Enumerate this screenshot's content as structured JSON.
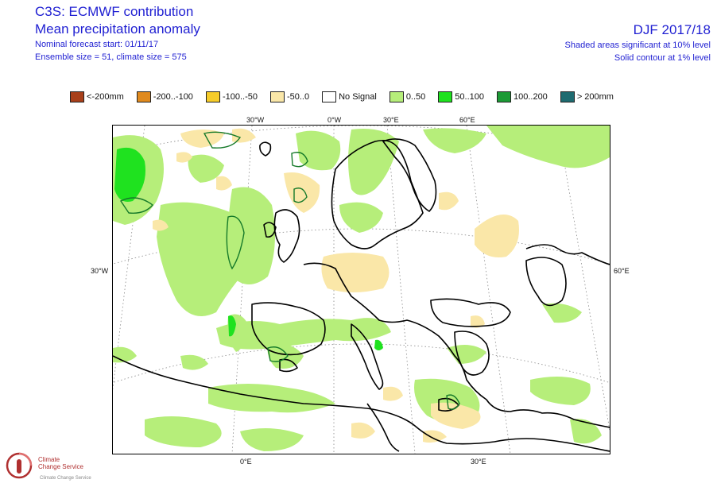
{
  "header": {
    "title": "C3S: ECMWF contribution",
    "subtitle": "Mean precipitation anomaly",
    "forecast_start": "Nominal forecast start: 01/11/17",
    "ensemble": "Ensemble size = 51, climate size = 575",
    "period": "DJF 2017/18",
    "significance_shaded": "Shaded areas significant at 10% level",
    "significance_contour": "Solid contour at 1% level"
  },
  "legend": [
    {
      "label": "<-200mm",
      "color": "#a8401a"
    },
    {
      "label": "-200..-100",
      "color": "#e08a1e"
    },
    {
      "label": "-100..-50",
      "color": "#f6cc2a"
    },
    {
      "label": "-50..0",
      "color": "#fae7a8"
    },
    {
      "label": "No Signal",
      "color": "#ffffff"
    },
    {
      "label": "0..50",
      "color": "#b6ee7a"
    },
    {
      "label": "50..100",
      "color": "#1fe21f"
    },
    {
      "label": "100..200",
      "color": "#1c9a35"
    },
    {
      "label": "> 200mm",
      "color": "#1e6b70"
    }
  ],
  "ticks": {
    "top": [
      "30°W",
      "0°W",
      "30°E",
      "60°E"
    ],
    "left": "30°W",
    "right": "60°E",
    "bottom": [
      "0°E",
      "30°E"
    ]
  },
  "logo": {
    "line1": "Climate",
    "line2": "Change Service",
    "sub": "Climate Change Service"
  }
}
